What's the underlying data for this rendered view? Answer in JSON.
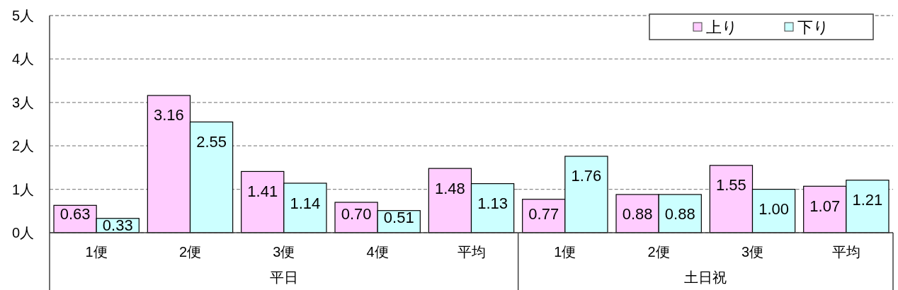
{
  "chart_data": [
    {
      "type": "bar",
      "categories": [
        "1便",
        "2便",
        "3便",
        "4便",
        "平均"
      ],
      "xlabel": "平日",
      "series": [
        {
          "color": "#ffccff",
          "values": [
            0.63,
            3.16,
            1.41,
            0.7,
            1.48
          ],
          "value_labels": [
            "0.63",
            "3.16",
            "1.41",
            "0.70",
            "1.48"
          ]
        },
        {
          "color": "#ccffff",
          "values": [
            0.33,
            2.55,
            1.14,
            0.51,
            1.13
          ],
          "value_labels": [
            "0.33",
            "2.55",
            "1.14",
            "0.51",
            "1.13"
          ]
        }
      ],
      "ylim": [
        0,
        5
      ],
      "yticks": [
        {
          "value": 0,
          "label": "0人"
        },
        {
          "value": 1,
          "label": "1人"
        },
        {
          "value": 2,
          "label": "2人"
        },
        {
          "value": 3,
          "label": "3人"
        },
        {
          "value": 4,
          "label": "4人"
        },
        {
          "value": 5,
          "label": "5人"
        }
      ],
      "grid": "y"
    },
    {
      "type": "bar",
      "categories": [
        "1便",
        "2便",
        "3便",
        "平均"
      ],
      "xlabel": "土日祝",
      "series": [
        {
          "name": "上り",
          "color": "#ffccff",
          "values": [
            0.77,
            0.88,
            1.55,
            1.07
          ],
          "value_labels": [
            "0.77",
            "0.88",
            "1.55",
            "1.07"
          ]
        },
        {
          "name": "下り",
          "color": "#ccffff",
          "values": [
            1.76,
            0.88,
            1.0,
            1.21
          ],
          "value_labels": [
            "1.76",
            "0.88",
            "1.00",
            "1.21"
          ]
        }
      ],
      "ylim": [
        0,
        5
      ],
      "yticks": [
        0,
        1,
        2,
        3,
        4,
        5
      ],
      "tick_labels": "x",
      "grid": "y",
      "legend": "top right"
    }
  ]
}
